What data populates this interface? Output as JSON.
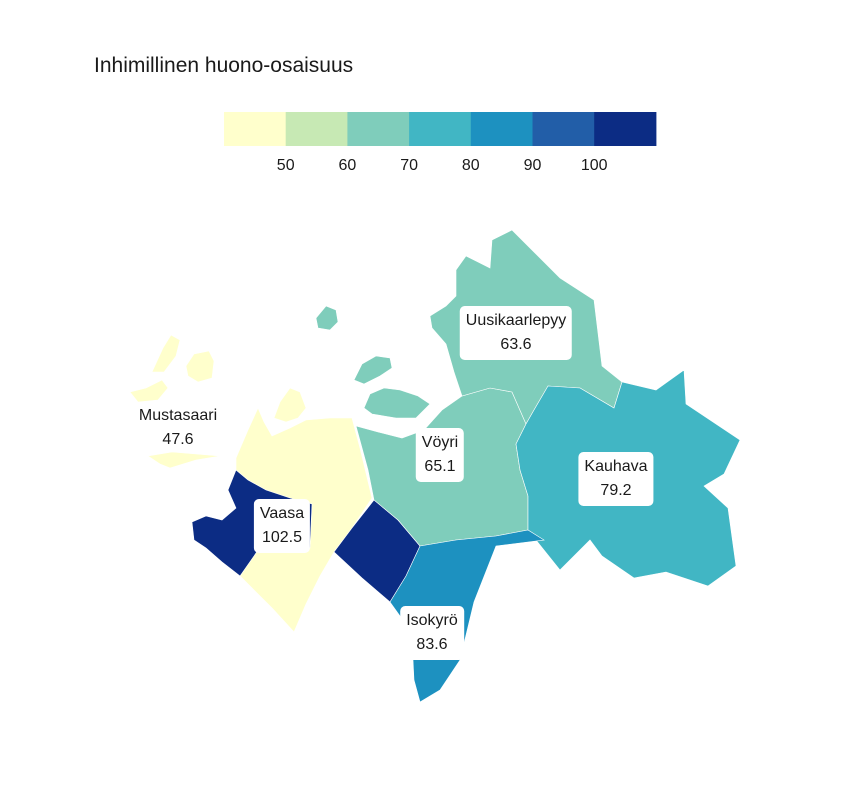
{
  "title": "Inhimillinen huono-osaisuus",
  "legend": {
    "colors": [
      "#ffffcc",
      "#c7e9b4",
      "#7fcdbb",
      "#41b6c4",
      "#1d91c0",
      "#225ea8",
      "#0c2c84"
    ],
    "ticks": [
      "50",
      "60",
      "70",
      "80",
      "90",
      "100"
    ]
  },
  "regions": [
    {
      "name": "Mustasaari",
      "value": "47.6",
      "color": "#ffffcc"
    },
    {
      "name": "Vaasa",
      "value": "102.5",
      "color": "#0c2c84"
    },
    {
      "name": "Vöyri",
      "value": "65.1",
      "color": "#7fcdbb"
    },
    {
      "name": "Uusikaarlepyy",
      "value": "63.6",
      "color": "#7fcdbb"
    },
    {
      "name": "Kauhava",
      "value": "79.2",
      "color": "#41b6c4"
    },
    {
      "name": "Isokyrö",
      "value": "83.6",
      "color": "#1d91c0"
    }
  ]
}
